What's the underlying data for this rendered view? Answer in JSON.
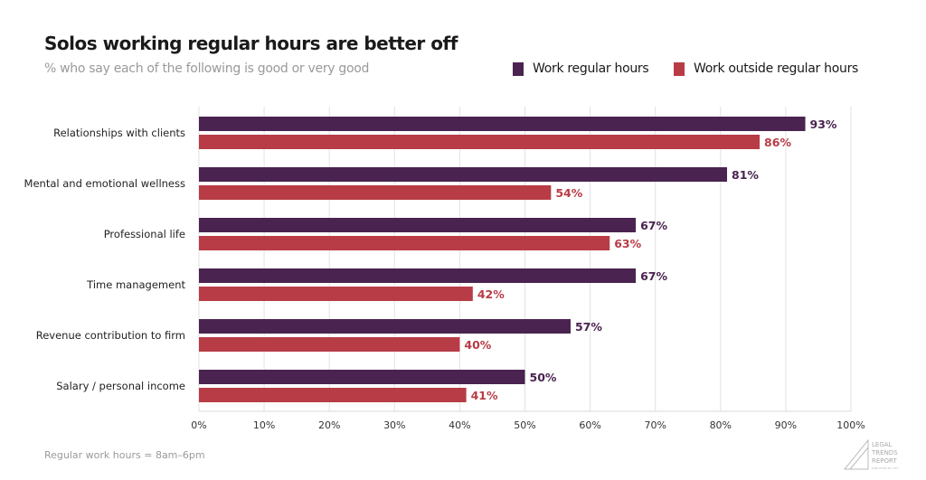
{
  "chart_data": {
    "type": "bar",
    "orientation": "horizontal",
    "title": "Solos working regular hours are better off",
    "subtitle": "% who say each of the following is good or very good",
    "categories": [
      "Relationships with clients",
      "Mental and emotional wellness",
      "Professional life",
      "Time management",
      "Revenue contribution to firm",
      "Salary / personal income"
    ],
    "series": [
      {
        "name": "Work regular hours",
        "color": "#4a2350",
        "values": [
          93,
          81,
          67,
          67,
          57,
          50
        ]
      },
      {
        "name": "Work outside regular hours",
        "color": "#b83c46",
        "values": [
          86,
          54,
          63,
          42,
          40,
          41
        ]
      }
    ],
    "xlim": [
      0,
      100
    ],
    "xticks": [
      "0%",
      "10%",
      "20%",
      "30%",
      "40%",
      "50%",
      "60%",
      "70%",
      "80%",
      "90%",
      "100%"
    ],
    "grid": true,
    "legend_position": "top-right",
    "footnote": "Regular work hours = 8am–6pm"
  },
  "logo": {
    "lines": [
      "LEGAL",
      "TRENDS",
      "REPORT"
    ],
    "tagline": "PUBLISHED BY CLIO"
  }
}
